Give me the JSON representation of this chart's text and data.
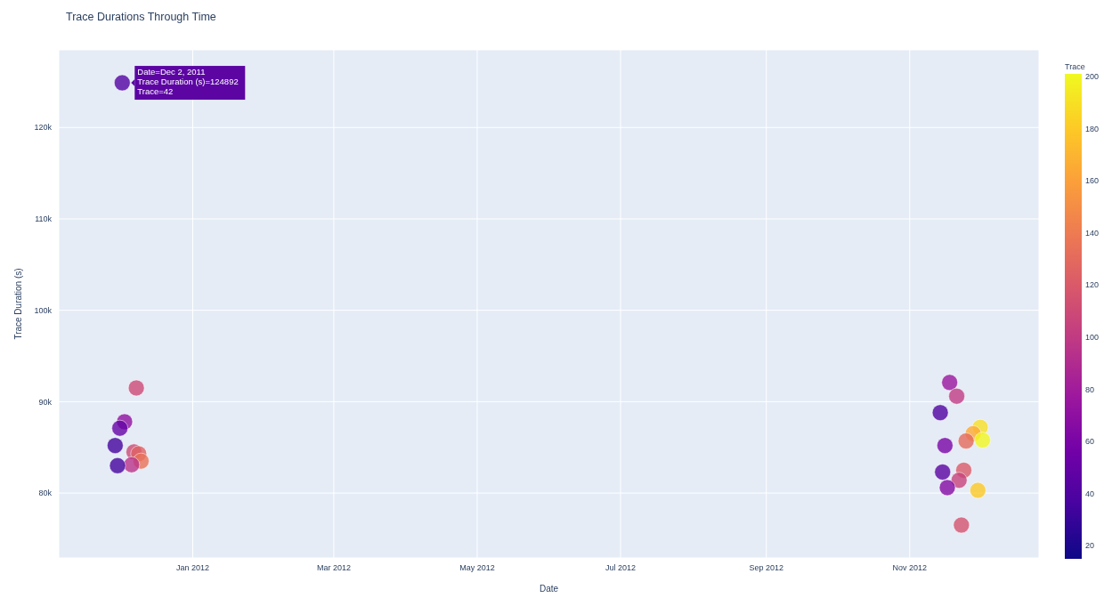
{
  "chart_data": {
    "type": "scatter",
    "title": "Trace Durations Through Time",
    "xlabel": "Date",
    "ylabel": "Trace Duration (s)",
    "clabel": "Trace",
    "x": [
      "2011-12-02",
      "2011-12-08",
      "2011-12-03",
      "2011-12-01",
      "2011-11-29",
      "2011-12-07",
      "2011-12-09",
      "2011-12-10",
      "2011-12-06",
      "2011-11-30",
      "2012-11-18",
      "2012-11-21",
      "2012-11-14",
      "2012-12-01",
      "2012-11-28",
      "2012-12-02",
      "2012-11-25",
      "2012-11-16",
      "2012-11-15",
      "2012-11-24",
      "2012-11-22",
      "2012-11-17",
      "2012-11-30",
      "2012-11-23"
    ],
    "values": [
      124892,
      91500,
      87800,
      87100,
      85200,
      84500,
      84300,
      83500,
      83100,
      83000,
      92100,
      90600,
      88800,
      87200,
      86500,
      85800,
      85700,
      85200,
      82300,
      82500,
      81400,
      80600,
      80300,
      76500
    ],
    "cvalues": [
      42,
      110,
      70,
      50,
      35,
      110,
      125,
      135,
      95,
      35,
      75,
      100,
      40,
      190,
      165,
      200,
      130,
      60,
      45,
      120,
      105,
      65,
      180,
      115
    ],
    "clim": [
      15,
      201
    ],
    "cticks": [
      20,
      40,
      60,
      80,
      100,
      120,
      140,
      160,
      180,
      200
    ],
    "xlim": [
      "2011-11-05",
      "2012-12-26"
    ],
    "xticks": [
      {
        "value": "2012-01-01",
        "label": "Jan 2012"
      },
      {
        "value": "2012-03-01",
        "label": "Mar 2012"
      },
      {
        "value": "2012-05-01",
        "label": "May 2012"
      },
      {
        "value": "2012-07-01",
        "label": "Jul 2012"
      },
      {
        "value": "2012-09-01",
        "label": "Sep 2012"
      },
      {
        "value": "2012-11-01",
        "label": "Nov 2012"
      }
    ],
    "ylim": [
      72900,
      128500
    ],
    "yticks": [
      {
        "value": 80000,
        "label": "80k"
      },
      {
        "value": 90000,
        "label": "90k"
      },
      {
        "value": 100000,
        "label": "100k"
      },
      {
        "value": 110000,
        "label": "110k"
      },
      {
        "value": 120000,
        "label": "120k"
      }
    ],
    "grid": true,
    "marker": "circle",
    "annotations": [
      {
        "text": "Date=Dec 2, 2011\nTrace Duration (s)=124892\nTrace=42",
        "x": "2011-12-02",
        "y": 124892
      }
    ]
  }
}
